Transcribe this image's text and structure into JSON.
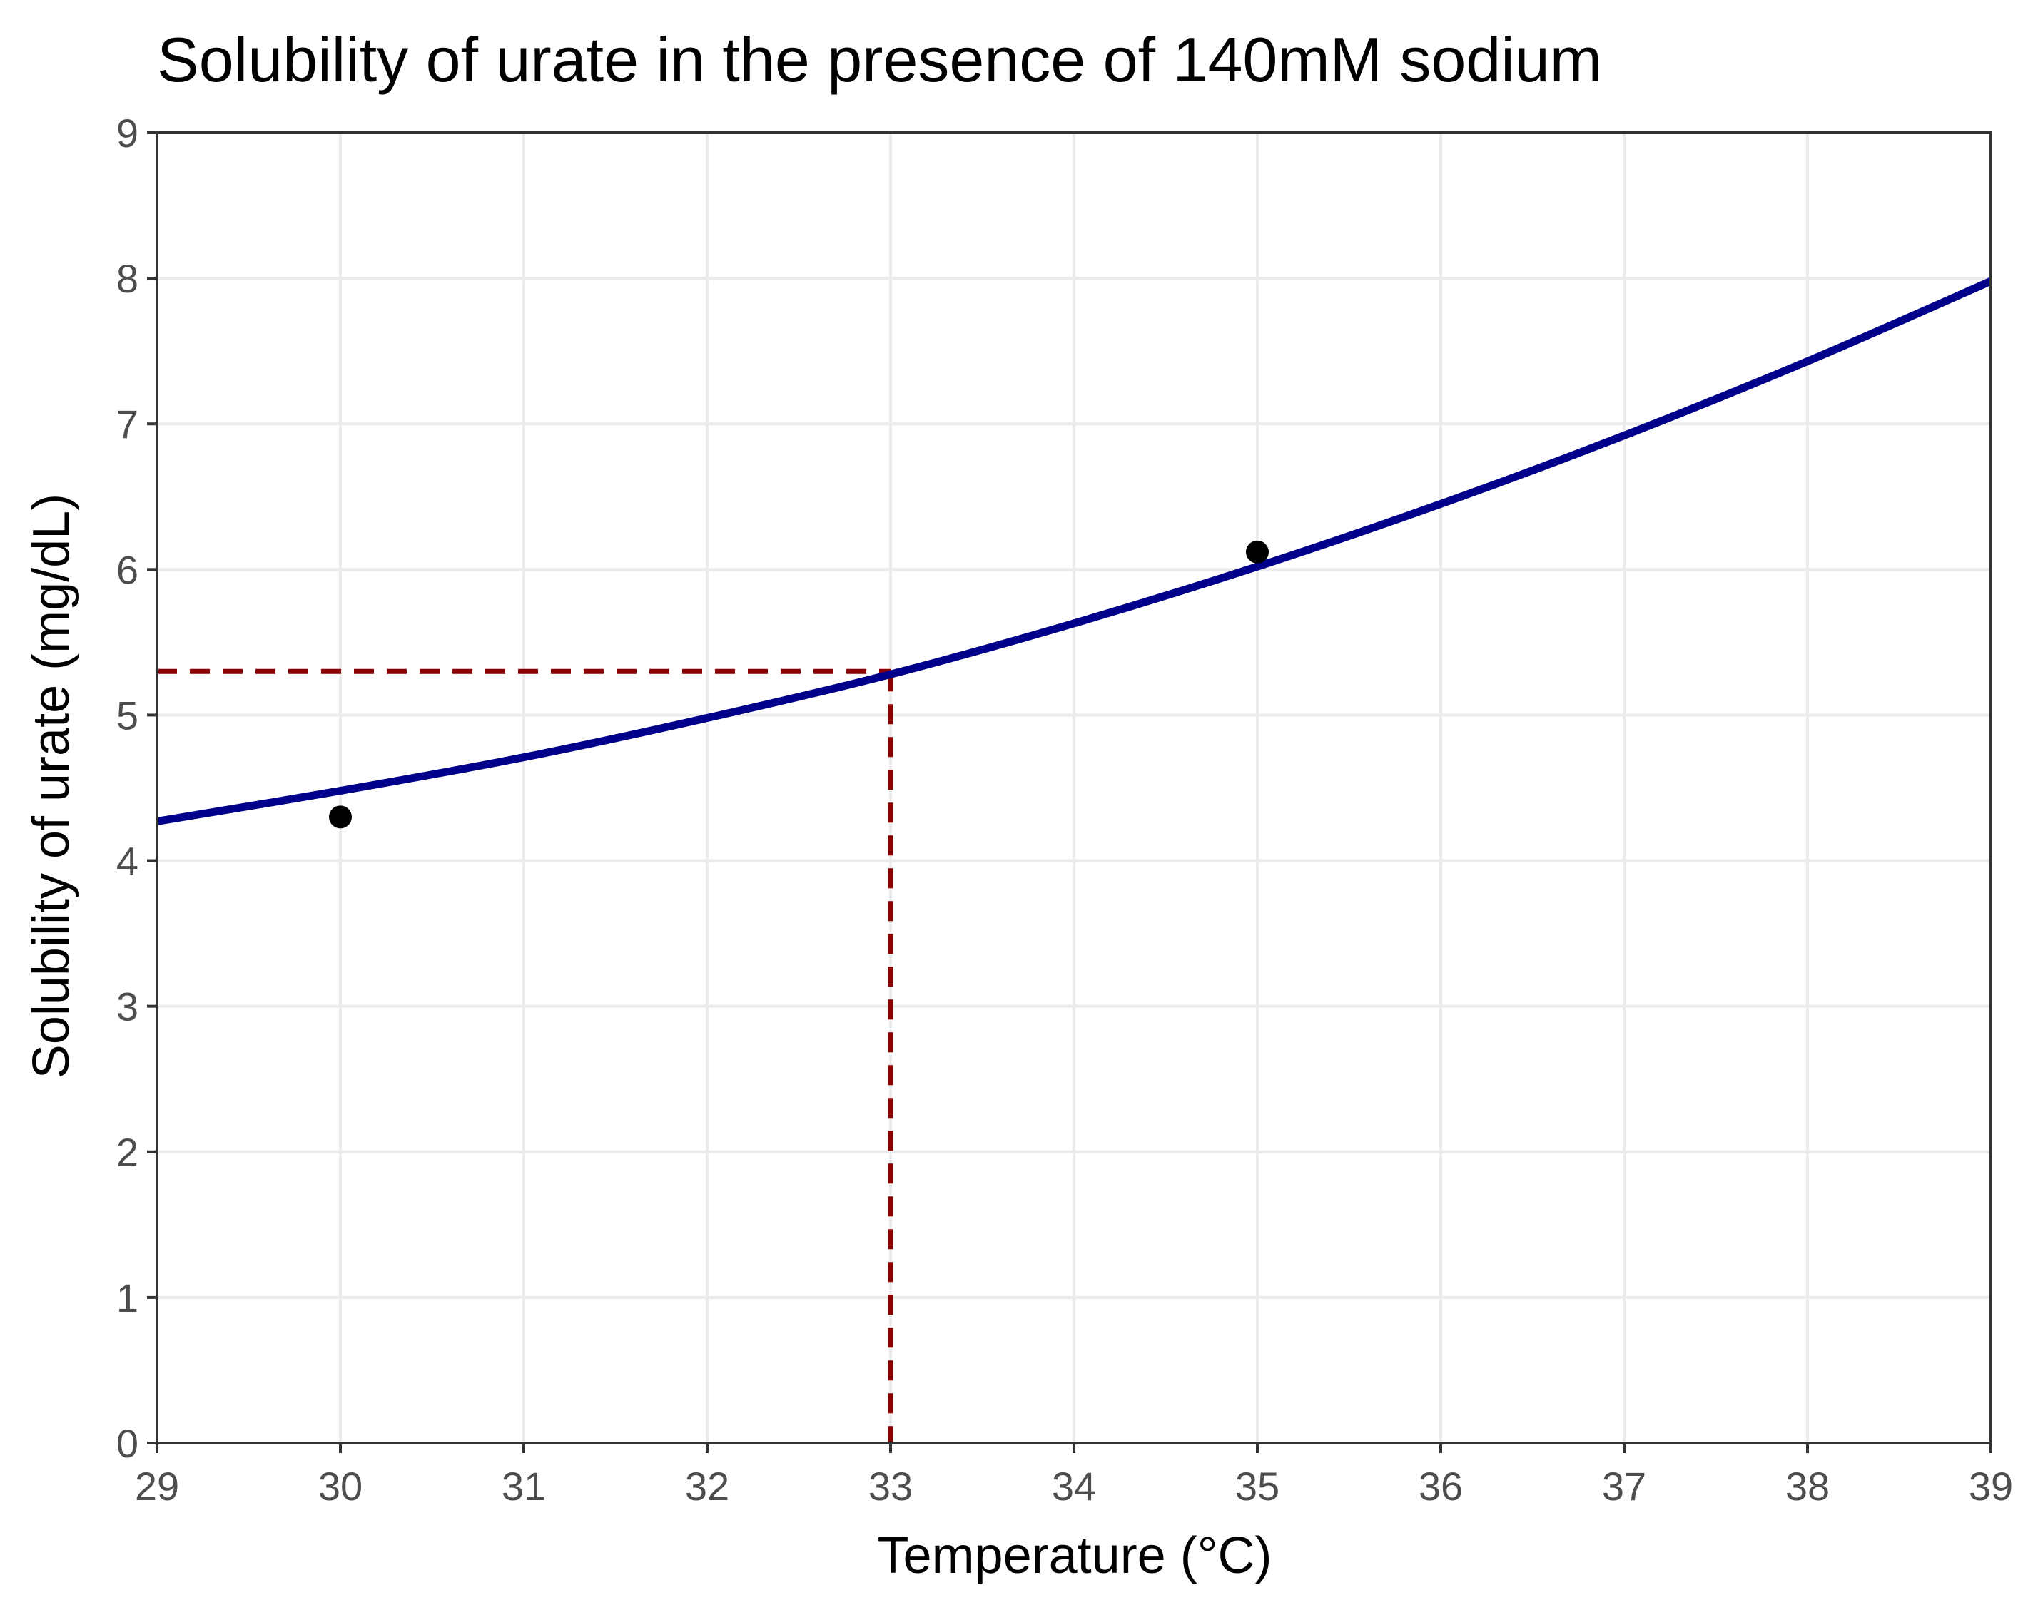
{
  "chart_data": {
    "type": "line",
    "title": "Solubility of urate in the presence of 140mM sodium",
    "xlabel": "Temperature (°C)",
    "ylabel": "Solubility of urate (mg/dL)",
    "xlim": [
      29,
      39
    ],
    "ylim": [
      0,
      9
    ],
    "x_ticks": [
      "29",
      "30",
      "31",
      "32",
      "33",
      "34",
      "35",
      "36",
      "37",
      "38",
      "39"
    ],
    "y_ticks": [
      "0",
      "1",
      "2",
      "3",
      "4",
      "5",
      "6",
      "7",
      "8",
      "9"
    ],
    "grid": true,
    "legend": "none",
    "curve": {
      "color": "#00008b",
      "x": [
        29,
        30,
        31,
        32,
        33,
        34,
        35,
        36,
        37,
        38,
        39
      ],
      "y": [
        4.27,
        4.48,
        4.71,
        4.98,
        5.28,
        5.63,
        6.02,
        6.45,
        6.92,
        7.43,
        7.98
      ]
    },
    "points": {
      "color": "#000000",
      "x": [
        30,
        35
      ],
      "y": [
        4.3,
        6.12
      ]
    },
    "reference": {
      "color": "#8b0000",
      "style": "dashed",
      "x": 33,
      "y": 5.3
    }
  }
}
